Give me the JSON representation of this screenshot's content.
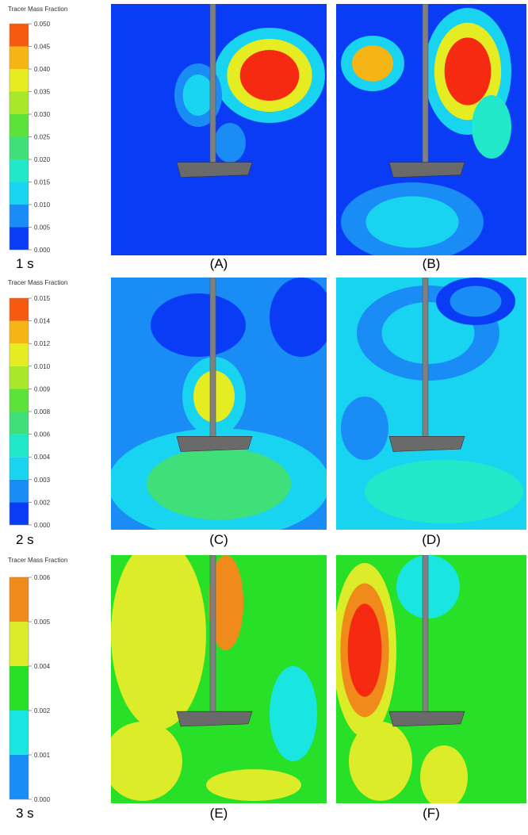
{
  "rows": [
    {
      "legend": {
        "title": "Tracer Mass Fraction",
        "ticks": [
          "0.000",
          "0.005",
          "0.010",
          "0.015",
          "0.020",
          "0.025",
          "0.030",
          "0.035",
          "0.040",
          "0.045",
          "0.050"
        ]
      },
      "time": "1 s",
      "panels": [
        "(A)",
        "(B)"
      ]
    },
    {
      "legend": {
        "title": "Tracer Mass Fraction",
        "ticks": [
          "0.000",
          "0.002",
          "0.003",
          "0.004",
          "0.006",
          "0.008",
          "0.009",
          "0.010",
          "0.012",
          "0.014",
          "0.015"
        ]
      },
      "time": "2 s",
      "panels": [
        "(C)",
        "(D)"
      ]
    },
    {
      "legend": {
        "title": "Tracer Mass Fraction",
        "ticks": [
          "0.000",
          "0.001",
          "0.002",
          "0.004",
          "0.005",
          "0.006"
        ]
      },
      "time": "3 s",
      "panels": [
        "(E)",
        "(F)"
      ]
    }
  ]
}
